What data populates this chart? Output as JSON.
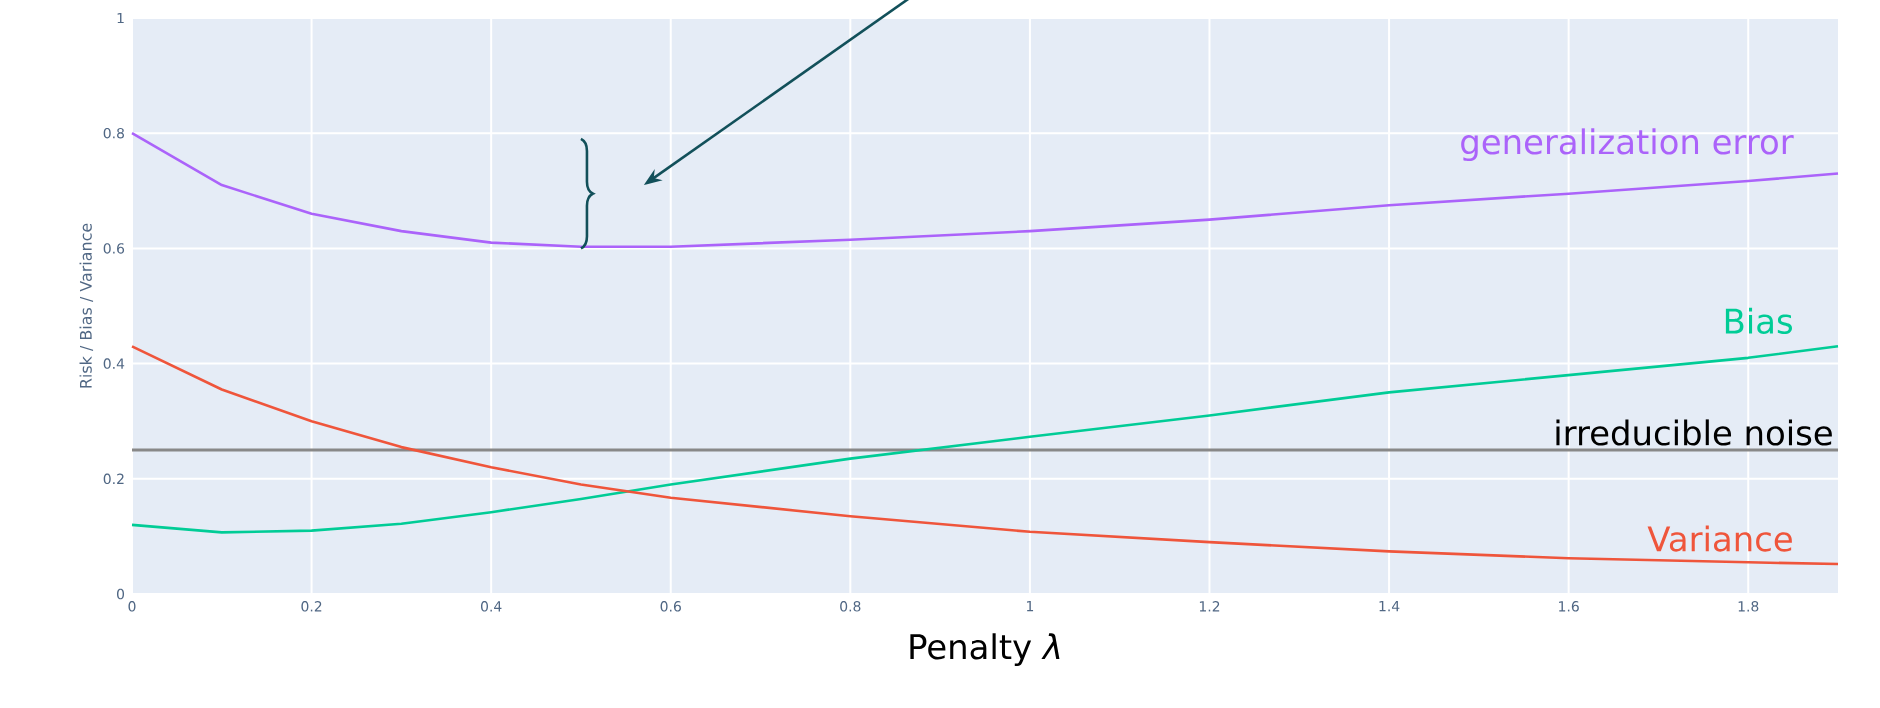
{
  "chart_data": {
    "type": "line",
    "xlabel": "Penalty *λ*",
    "ylabel": "Risk / Bias / Variance",
    "x": [
      0,
      0.1,
      0.2,
      0.3,
      0.4,
      0.5,
      0.6,
      0.8,
      1.0,
      1.2,
      1.4,
      1.6,
      1.8,
      1.9
    ],
    "series": [
      {
        "name": "generalization error",
        "color": "#ab63fa",
        "values": [
          0.8,
          0.71,
          0.66,
          0.63,
          0.61,
          0.603,
          0.603,
          0.615,
          0.63,
          0.65,
          0.675,
          0.695,
          0.717,
          0.73
        ]
      },
      {
        "name": "Bias",
        "color": "#00cc96",
        "values": [
          0.12,
          0.107,
          0.11,
          0.122,
          0.142,
          0.165,
          0.19,
          0.235,
          0.273,
          0.31,
          0.35,
          0.38,
          0.41,
          0.43
        ]
      },
      {
        "name": "Variance",
        "color": "#ef553b",
        "values": [
          0.43,
          0.355,
          0.3,
          0.255,
          0.22,
          0.19,
          0.167,
          0.135,
          0.108,
          0.09,
          0.074,
          0.062,
          0.055,
          0.052
        ]
      }
    ],
    "ref_lines": [
      {
        "axis": "y",
        "value": 0.25,
        "label": "irreducible noise",
        "color": "#888888"
      }
    ],
    "xlim": [
      0,
      1.9
    ],
    "ylim": [
      0,
      1
    ],
    "xticks": [
      0,
      0.2,
      0.4,
      0.6,
      0.8,
      1,
      1.2,
      1.4,
      1.6,
      1.8
    ],
    "yticks": [
      0,
      0.2,
      0.4,
      0.6,
      0.8,
      1
    ],
    "grid": true,
    "marker": "none",
    "line_style": "solid"
  }
}
